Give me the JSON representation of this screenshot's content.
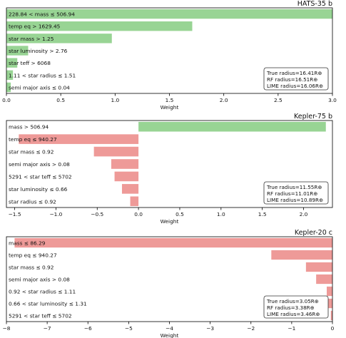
{
  "chart_data": [
    {
      "type": "bar",
      "orientation": "horizontal",
      "title": "HATS-35 b",
      "xlabel": "Weight",
      "xlim": [
        0,
        3.0
      ],
      "xticks": [
        0.0,
        0.5,
        1.0,
        1.5,
        2.0,
        2.5,
        3.0
      ],
      "xtick_labels": [
        "0.0",
        "0.5",
        "1.0",
        "1.5",
        "2.0",
        "2.5",
        "3.0"
      ],
      "categories": [
        "228.84 < mass ≤ 506.94",
        "temp eq > 1629.45",
        "star mass > 1.25",
        "star luminosity > 2.76",
        "star teff > 6068",
        "1.11 < star radius ≤ 1.51",
        "semi major axis ≤ 0.04"
      ],
      "values": [
        3.0,
        1.71,
        0.97,
        0.2,
        0.1,
        0.06,
        0.04
      ],
      "legend_lines": [
        "True radius=16.41R⊕",
        "RF radius=16.51R⊕",
        "LIME radius=16.06R⊕"
      ]
    },
    {
      "type": "bar",
      "orientation": "horizontal",
      "title": "Kepler-75 b",
      "xlabel": "Weight",
      "xlim": [
        -1.6,
        2.35
      ],
      "xticks": [
        -1.5,
        -1.0,
        -0.5,
        0.0,
        0.5,
        1.0,
        1.5,
        2.0
      ],
      "xtick_labels": [
        "−1.5",
        "−1.0",
        "−0.5",
        "0.0",
        "0.5",
        "1.0",
        "1.5",
        "2.0"
      ],
      "categories": [
        "mass > 506.94",
        "temp eq ≤ 940.27",
        "star mass ≤ 0.92",
        "semi major axis > 0.08",
        "5291 < star teff ≤ 5702",
        "star luminosity ≤ 0.66",
        "star radius ≤ 0.92"
      ],
      "values": [
        2.27,
        -1.45,
        -0.54,
        -0.33,
        -0.29,
        -0.2,
        -0.1
      ],
      "legend_lines": [
        "True radius=11.55R⊕",
        "RF radius=11.01R⊕",
        "LIME radius=10.89R⊕"
      ]
    },
    {
      "type": "bar",
      "orientation": "horizontal",
      "title": "Kepler-20 c",
      "xlabel": "Weight",
      "xlim": [
        -8.0,
        0.0
      ],
      "xticks": [
        -8,
        -7,
        -6,
        -5,
        -4,
        -3,
        -2,
        -1,
        0
      ],
      "xtick_labels": [
        "−8",
        "−7",
        "−6",
        "−5",
        "−4",
        "−3",
        "−2",
        "−1",
        "0"
      ],
      "categories": [
        "mass ≤ 86.29",
        "temp eq ≤ 940.27",
        "star mass ≤ 0.92",
        "semi major axis > 0.08",
        "0.92 < star radius ≤ 1.11",
        "0.66 < star luminosity ≤ 1.31",
        "5291 < star teff ≤ 5702"
      ],
      "values": [
        -7.8,
        -1.5,
        -0.65,
        -0.4,
        -0.14,
        -0.12,
        -0.04
      ],
      "legend_lines": [
        "True radius=3.05R⊕",
        "RF radius=3.38R⊕",
        "LIME radius=3.46R⊕"
      ]
    }
  ],
  "colors": {
    "positive": "#98d494",
    "negative": "#ee9a98",
    "axis": "#000000"
  }
}
